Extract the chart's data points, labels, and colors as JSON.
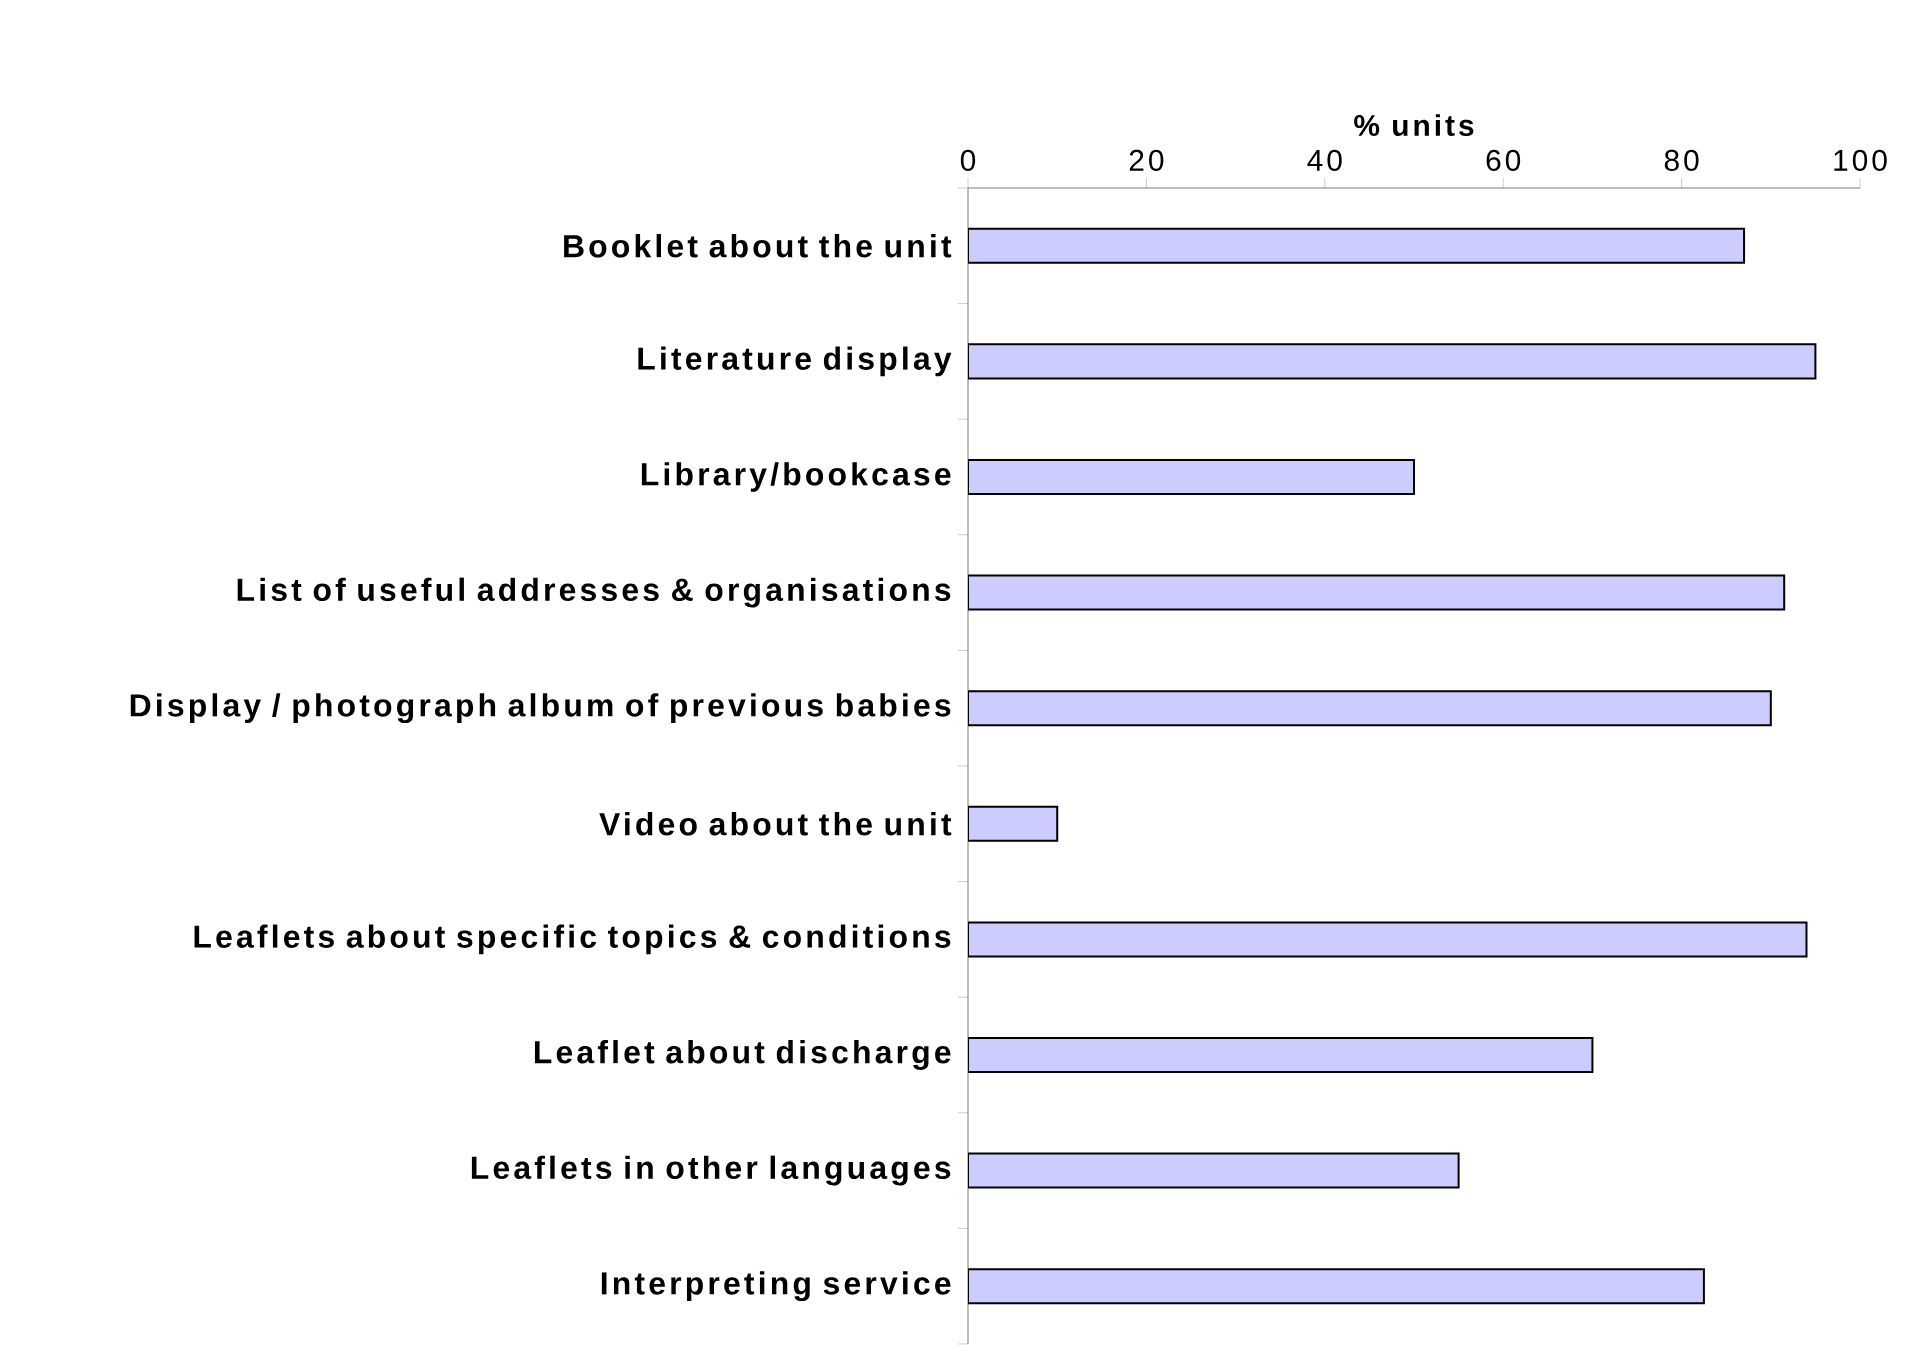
{
  "chart_data": {
    "type": "bar",
    "orientation": "horizontal",
    "xlabel": "% units",
    "categories": [
      "Booklet about the unit",
      "Literature display",
      "Library/bookcase",
      "List of useful addresses & organisations",
      "Display / photograph album of previous babies",
      "Video about the unit",
      "Leaflets about specific topics & conditions",
      "Leaflet about discharge",
      "Leaflets in other languages",
      "Interpreting service"
    ],
    "values": [
      87,
      95,
      50,
      91.5,
      90,
      10,
      94,
      70,
      55,
      82.5
    ],
    "color": "#ccccff",
    "xlim": [
      0,
      100
    ],
    "xticks": [
      0,
      20,
      40,
      60,
      80,
      100
    ],
    "grid": false
  }
}
